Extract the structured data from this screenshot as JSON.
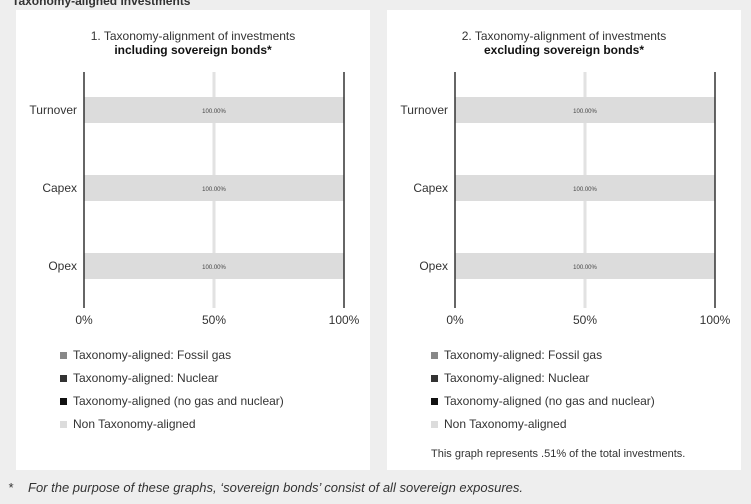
{
  "chart_data": [
    {
      "type": "bar",
      "orientation": "horizontal",
      "stacked": true,
      "title_line1": "1. Taxonomy-alignment of investments",
      "title_line2": "including sovereign bonds*",
      "categories": [
        "Turnover",
        "Capex",
        "Opex"
      ],
      "series": [
        {
          "name": "Taxonomy-aligned: Fossil gas",
          "values": [
            0,
            0,
            0
          ],
          "color": "#888888"
        },
        {
          "name": "Taxonomy-aligned: Nuclear",
          "values": [
            0,
            0,
            0
          ],
          "color": "#333333"
        },
        {
          "name": "Taxonomy-aligned (no gas and nuclear)",
          "values": [
            0,
            0,
            0
          ],
          "color": "#111111"
        },
        {
          "name": "Non Taxonomy-aligned",
          "values": [
            100,
            100,
            100
          ],
          "color": "#dcdcdc"
        }
      ],
      "data_labels": [
        "100.00%",
        "100.00%",
        "100.00%"
      ],
      "xlim": [
        0,
        100
      ],
      "xticks": [
        "0%",
        "50%",
        "100%"
      ],
      "legend_position": "bottom"
    },
    {
      "type": "bar",
      "orientation": "horizontal",
      "stacked": true,
      "title_line1": "2. Taxonomy-alignment of investments",
      "title_line2": "excluding sovereign bonds*",
      "categories": [
        "Turnover",
        "Capex",
        "Opex"
      ],
      "series": [
        {
          "name": "Taxonomy-aligned: Fossil gas",
          "values": [
            0,
            0,
            0
          ],
          "color": "#888888"
        },
        {
          "name": "Taxonomy-aligned: Nuclear",
          "values": [
            0,
            0,
            0
          ],
          "color": "#333333"
        },
        {
          "name": "Taxonomy-aligned (no gas and nuclear)",
          "values": [
            0,
            0,
            0
          ],
          "color": "#111111"
        },
        {
          "name": "Non Taxonomy-aligned",
          "values": [
            100,
            100,
            100
          ],
          "color": "#dcdcdc"
        }
      ],
      "data_labels": [
        "100.00%",
        "100.00%",
        "100.00%"
      ],
      "xlim": [
        0,
        100
      ],
      "xticks": [
        "0%",
        "50%",
        "100%"
      ],
      "legend_position": "bottom",
      "note": "This graph represents .51% of the total investments."
    }
  ],
  "top_text": "Taxonomy-aligned investments",
  "footnote": {
    "marker": "*",
    "text": "For the purpose of these graphs, ‘sovereign bonds’ consist of all sovereign exposures."
  }
}
